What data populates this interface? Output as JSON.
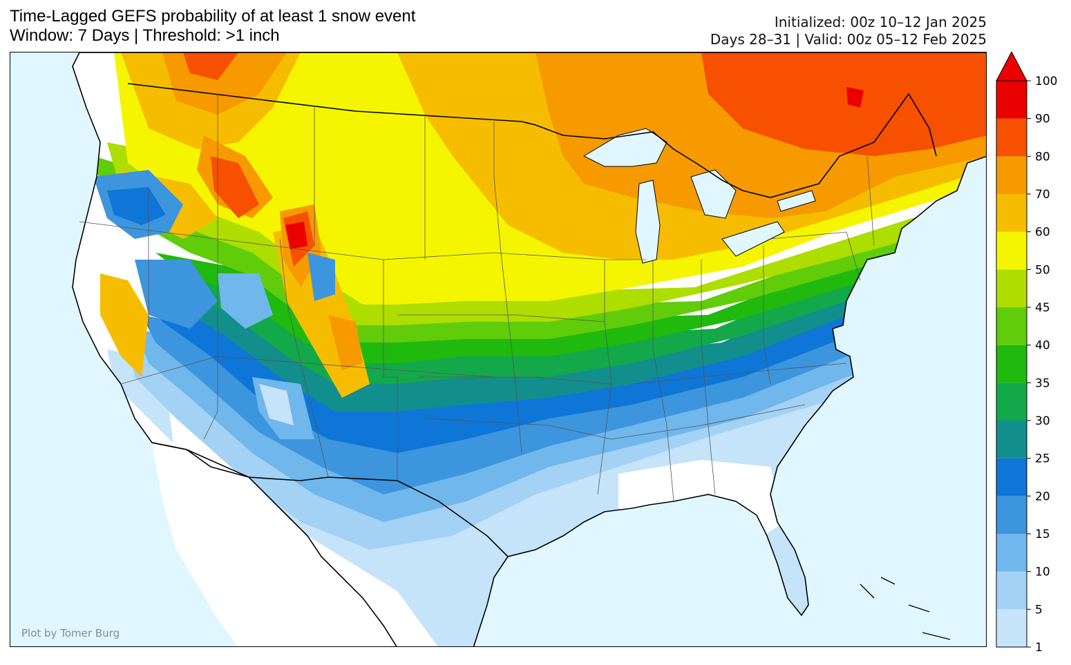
{
  "header": {
    "title_line1": "Time-Lagged GEFS probability of at least 1 snow event",
    "title_line2": "Window: 7 Days | Threshold: >1 inch",
    "init_line": "Initialized: 00z 10–12 Jan 2025",
    "valid_line": "Days 28–31 | Valid: 00z 05–12 Feb 2025"
  },
  "credit": "Plot by Tomer Burg",
  "colors": {
    "ocean": "#e0f7ff",
    "land_below_threshold": "#ffffff"
  },
  "colorbar": {
    "levels": [
      1,
      5,
      10,
      15,
      20,
      25,
      30,
      35,
      40,
      45,
      50,
      60,
      70,
      80,
      90,
      100
    ],
    "labels": [
      "1",
      "5",
      "10",
      "15",
      "20",
      "25",
      "30",
      "35",
      "40",
      "45",
      "50",
      "60",
      "70",
      "80",
      "90",
      "100"
    ],
    "colors": [
      "#c5e4fa",
      "#a3d2f5",
      "#70b7ec",
      "#3d95dd",
      "#0e76d6",
      "#128e8c",
      "#13a84a",
      "#20b90e",
      "#60cc0a",
      "#aedd00",
      "#f5f500",
      "#f6bd00",
      "#f69a00",
      "#f65000",
      "#eb0000"
    ],
    "extend": "max"
  }
}
